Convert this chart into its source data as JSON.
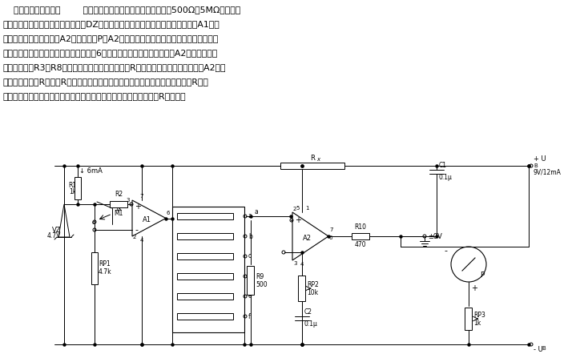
{
  "bg_color": "#ffffff",
  "paragraph_lines": [
    "    测量电阱可以采用图        所示的欧姆表电路。该电路测量量程为500Ω～5MΩ，并且具",
    "有线性刻度。主要组成部分有稳压管DZ构成的稳压源、提供基准电压的运算放大器A1和实",
    "现电压放大的指示放大器A2以及微安表P。A2接成反相直流电压放大器形式，其输出电压",
    "驱动微安表指示机构。在运算放大器引脚6输出端基准电压恒定的情况下，A2的电压放大系",
    "数决定于包阱R3～R8和作为反馈电阱用的待测电阱R。因此，在输入电阱固定时，A2的输",
    "出电压即正比于R。如果R同量程转换电阱值相等，则表头指针指到满刻度。如果R是量",
    "程转换电阱值的一半，则表针指到刻度盘的中间，因此，指示读数与R成正比。"
  ]
}
